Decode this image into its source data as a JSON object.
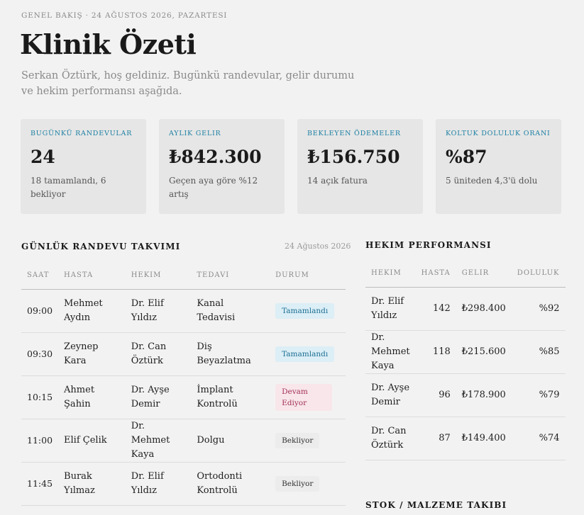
{
  "header": {
    "eyebrow": "GENEL BAKIŞ · 24 AĞUSTOS 2026, PAZARTESI",
    "title": "Klinik Özeti",
    "welcome": "Serkan Öztürk, hoş geldiniz. Bugünkü randevular, gelir durumu ve hekim performansı aşağıda."
  },
  "cards": [
    {
      "label": "BUGÜNKÜ RANDEVULAR",
      "value": "24",
      "note": "18 tamamlandı, 6 bekliyor"
    },
    {
      "label": "AYLIK GELIR",
      "value": "₺842.300",
      "note": "Geçen aya göre %12 artış"
    },
    {
      "label": "BEKLEYEN ÖDEMELER",
      "value": "₺156.750",
      "note": "14 açık fatura"
    },
    {
      "label": "KOLTUK DOLULUK ORANI",
      "value": "%87",
      "note": "5 üniteden 4,3'ü dolu"
    }
  ],
  "appointments": {
    "title": "GÜNLÜK RANDEVU TAKVIMI",
    "date": "24 Ağustos 2026",
    "columns": [
      "SAAT",
      "HASTA",
      "HEKIM",
      "TEDAVI",
      "DURUM"
    ],
    "rows": [
      {
        "time": "09:00",
        "patient": "Mehmet Aydın",
        "doctor": "Dr. Elif Yıldız",
        "treatment": "Kanal Tedavisi",
        "status": "Tamamlandı",
        "status_kind": "done"
      },
      {
        "time": "09:30",
        "patient": "Zeynep Kara",
        "doctor": "Dr. Can Öztürk",
        "treatment": "Diş Beyazlatma",
        "status": "Tamamlandı",
        "status_kind": "done"
      },
      {
        "time": "10:15",
        "patient": "Ahmet Şahin",
        "doctor": "Dr. Ayşe Demir",
        "treatment": "İmplant Kontrolü",
        "status": "Devam Ediyor",
        "status_kind": "progress"
      },
      {
        "time": "11:00",
        "patient": "Elif Çelik",
        "doctor": "Dr. Mehmet Kaya",
        "treatment": "Dolgu",
        "status": "Bekliyor",
        "status_kind": "wait"
      },
      {
        "time": "11:45",
        "patient": "Burak Yılmaz",
        "doctor": "Dr. Elif Yıldız",
        "treatment": "Ortodonti Kontrolü",
        "status": "Bekliyor",
        "status_kind": "wait"
      }
    ]
  },
  "performance": {
    "title": "HEKIM PERFORMANSI",
    "columns": [
      "HEKIM",
      "HASTA",
      "GELIR",
      "DOLULUK"
    ],
    "rows": [
      {
        "doctor": "Dr. Elif Yıldız",
        "patients": "142",
        "revenue": "₺298.400",
        "occupancy": "%92"
      },
      {
        "doctor": "Dr. Mehmet Kaya",
        "patients": "118",
        "revenue": "₺215.600",
        "occupancy": "%85"
      },
      {
        "doctor": "Dr. Ayşe Demir",
        "patients": "96",
        "revenue": "₺178.900",
        "occupancy": "%79"
      },
      {
        "doctor": "Dr. Can Öztürk",
        "patients": "87",
        "revenue": "₺149.400",
        "occupancy": "%74"
      }
    ]
  },
  "stock": {
    "title": "STOK / MALZEME TAKIBI"
  },
  "colors": {
    "accent": "#1b7fa3",
    "background": "#f2f2f2",
    "card": "#e6e6e6"
  }
}
